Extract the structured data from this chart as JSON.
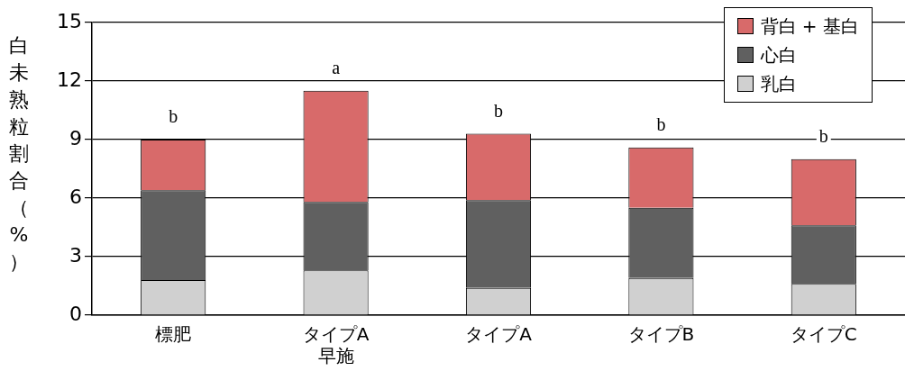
{
  "chart_data": {
    "type": "bar",
    "stacked": true,
    "ylabel": "白未熟粒割合（%）",
    "categories": [
      "標肥",
      "タイプA\n早施",
      "タイプA",
      "タイプB",
      "タイプC"
    ],
    "series": [
      {
        "name": "乳白",
        "color": "#d0d0d0",
        "values": [
          1.8,
          2.3,
          1.4,
          1.9,
          1.6
        ]
      },
      {
        "name": "心白",
        "color": "#606060",
        "values": [
          4.6,
          3.5,
          4.5,
          3.6,
          3.0
        ]
      },
      {
        "name": "背白 + 基白",
        "color": "#d86a6a",
        "values": [
          2.6,
          5.7,
          3.4,
          3.1,
          3.4
        ]
      }
    ],
    "ylim": [
      0,
      15
    ],
    "yticks": [
      0,
      3,
      6,
      9,
      12,
      15
    ],
    "grid": "y",
    "legend": "top right",
    "annotations": [
      "b",
      "a",
      "b",
      "b",
      "b"
    ]
  }
}
